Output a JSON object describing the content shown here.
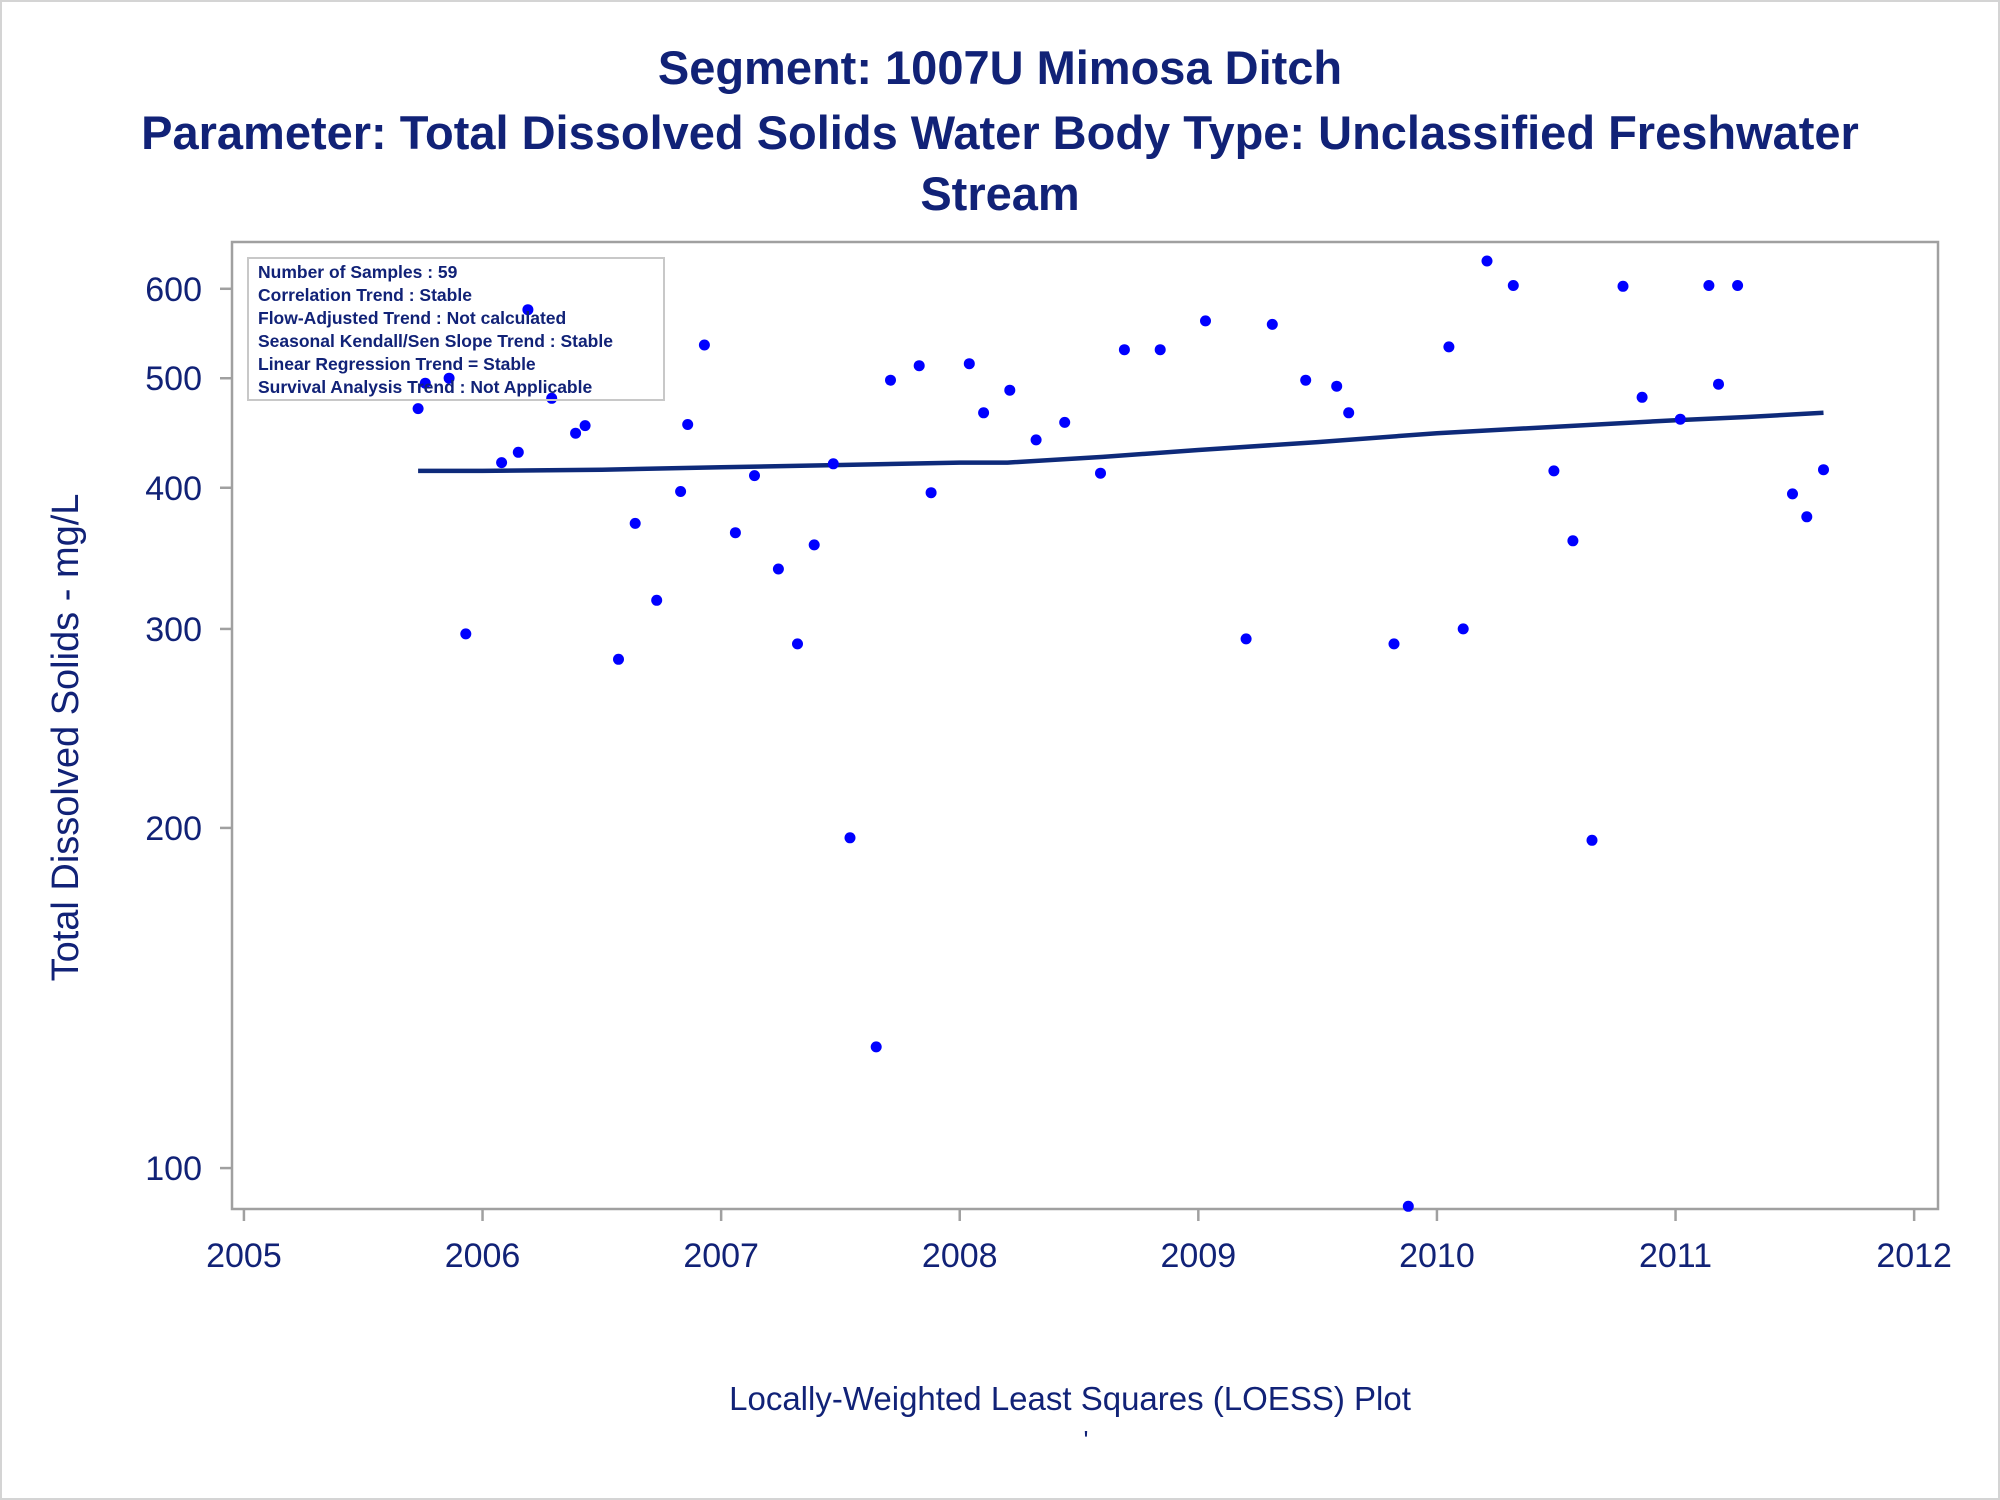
{
  "title_line1": "Segment: 1007U  Mimosa Ditch",
  "title_line2": "Parameter: Total Dissolved Solids   Water Body Type: Unclassified Freshwater",
  "title_line3": "Stream",
  "footer": "Locally-Weighted Least Squares (LOESS) Plot",
  "footer_mark": "'",
  "colors": {
    "text": "#112277",
    "points": "#0000ff",
    "loess": "#0e2a7a",
    "frame": "#a0a0a0"
  },
  "stats_box": [
    "Number of Samples : 59",
    "Correlation Trend : Stable",
    "Flow-Adjusted Trend : Not calculated",
    "Seasonal Kendall/Sen Slope Trend : Stable",
    "Linear Regression Trend = Stable",
    "Survival Analysis Trend : Not Applicable"
  ],
  "chart_data": {
    "type": "scatter",
    "title": "Segment: 1007U  Mimosa Ditch",
    "xlabel": "",
    "ylabel": "Total Dissolved Solids - mg/L",
    "xlim": [
      2004.95,
      2012.1
    ],
    "ylim": [
      92,
      660
    ],
    "y_scale": "log",
    "xticks": [
      2005,
      2006,
      2007,
      2008,
      2009,
      2010,
      2011,
      2012
    ],
    "yticks": [
      100,
      200,
      300,
      400,
      500,
      600
    ],
    "grid": false,
    "legend": "top-left",
    "points": [
      [
        2005.73,
        470
      ],
      [
        2005.76,
        495
      ],
      [
        2005.86,
        500
      ],
      [
        2005.93,
        297
      ],
      [
        2006.08,
        421
      ],
      [
        2006.15,
        430
      ],
      [
        2006.19,
        575
      ],
      [
        2006.29,
        480
      ],
      [
        2006.39,
        447
      ],
      [
        2006.43,
        454
      ],
      [
        2006.57,
        282
      ],
      [
        2006.64,
        372
      ],
      [
        2006.73,
        318
      ],
      [
        2006.83,
        397
      ],
      [
        2006.86,
        455
      ],
      [
        2006.93,
        535
      ],
      [
        2007.06,
        365
      ],
      [
        2007.14,
        410
      ],
      [
        2007.24,
        339
      ],
      [
        2007.32,
        291
      ],
      [
        2007.39,
        356
      ],
      [
        2007.47,
        420
      ],
      [
        2007.54,
        196
      ],
      [
        2007.65,
        128
      ],
      [
        2007.71,
        498
      ],
      [
        2007.83,
        513
      ],
      [
        2007.88,
        396
      ],
      [
        2008.04,
        515
      ],
      [
        2008.1,
        466
      ],
      [
        2008.21,
        488
      ],
      [
        2008.32,
        441
      ],
      [
        2008.44,
        457
      ],
      [
        2008.59,
        412
      ],
      [
        2008.69,
        530
      ],
      [
        2008.84,
        530
      ],
      [
        2009.03,
        562
      ],
      [
        2009.2,
        294
      ],
      [
        2009.31,
        558
      ],
      [
        2009.45,
        498
      ],
      [
        2009.58,
        492
      ],
      [
        2009.63,
        466
      ],
      [
        2009.82,
        291
      ],
      [
        2009.88,
        92.5
      ],
      [
        2010.05,
        533
      ],
      [
        2010.11,
        300
      ],
      [
        2010.21,
        635
      ],
      [
        2010.32,
        604
      ],
      [
        2010.49,
        414
      ],
      [
        2010.57,
        359
      ],
      [
        2010.65,
        195
      ],
      [
        2010.78,
        603
      ],
      [
        2010.86,
        481
      ],
      [
        2011.02,
        460
      ],
      [
        2011.14,
        604
      ],
      [
        2011.18,
        494
      ],
      [
        2011.26,
        604
      ],
      [
        2011.49,
        395
      ],
      [
        2011.55,
        377
      ],
      [
        2011.62,
        415
      ]
    ],
    "loess": [
      [
        2005.73,
        414
      ],
      [
        2006.0,
        414
      ],
      [
        2006.5,
        415
      ],
      [
        2007.0,
        417
      ],
      [
        2007.5,
        419
      ],
      [
        2008.0,
        421
      ],
      [
        2008.2,
        421
      ],
      [
        2008.6,
        426
      ],
      [
        2009.0,
        432
      ],
      [
        2009.5,
        439
      ],
      [
        2010.0,
        447
      ],
      [
        2010.5,
        453
      ],
      [
        2011.0,
        459
      ],
      [
        2011.3,
        462
      ],
      [
        2011.62,
        466
      ]
    ]
  }
}
